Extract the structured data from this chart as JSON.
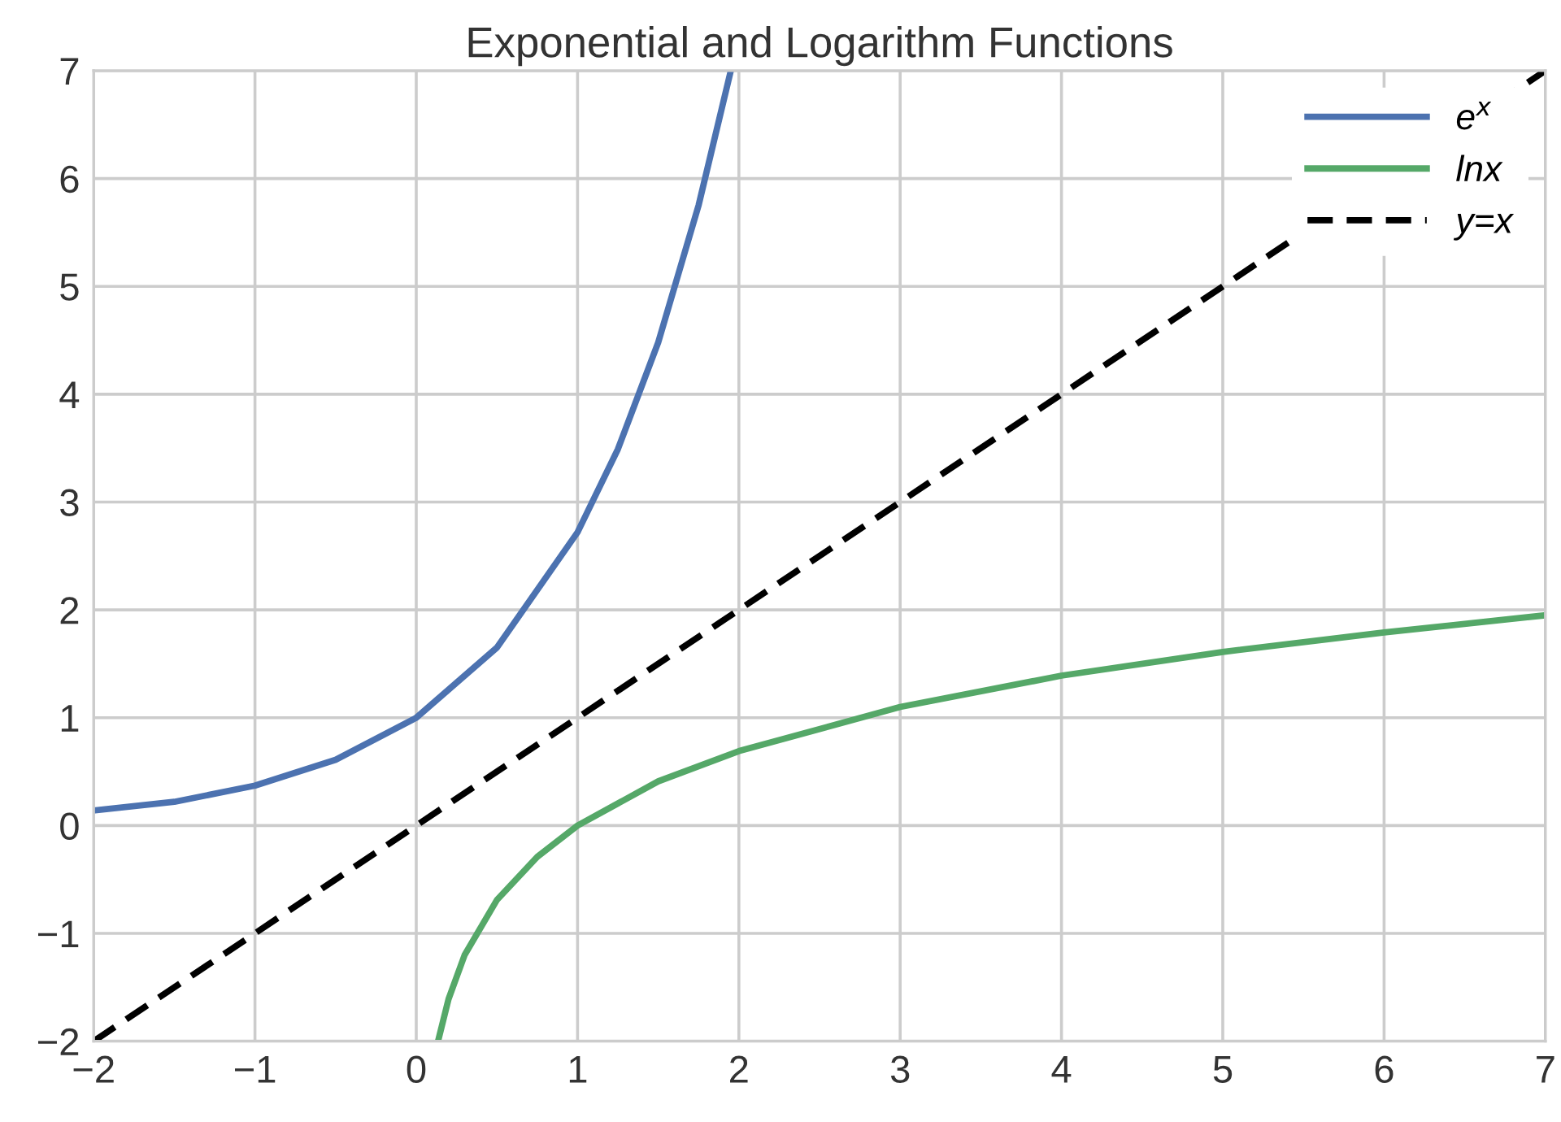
{
  "chart_data": {
    "type": "line",
    "title": "Exponential and Logarithm Functions",
    "series": [
      {
        "name": "e$^{x}$",
        "color": "#4c72b0",
        "line_style": "solid",
        "x": [
          -2,
          -1.5,
          -1,
          -0.5,
          0,
          0.5,
          1,
          1.25,
          1.5,
          1.75,
          1.95
        ],
        "values": [
          0.14,
          0.22,
          0.37,
          0.61,
          1,
          1.65,
          2.72,
          3.49,
          4.48,
          5.75,
          7.0
        ]
      },
      {
        "name": "lnx",
        "color": "#55a868",
        "line_style": "solid",
        "x": [
          0.14,
          0.2,
          0.3,
          0.5,
          0.75,
          1,
          1.5,
          2,
          3,
          4,
          5,
          6,
          7
        ],
        "values": [
          -1.97,
          -1.61,
          -1.2,
          -0.69,
          -0.29,
          0,
          0.41,
          0.69,
          1.1,
          1.39,
          1.61,
          1.79,
          1.95
        ]
      },
      {
        "name": "y=x",
        "color": "#000000",
        "line_style": "dashed",
        "x": [
          -2,
          7
        ],
        "values": [
          -2,
          7
        ]
      }
    ],
    "xlim": [
      -2,
      7
    ],
    "ylim": [
      -2,
      7
    ],
    "xticks": [
      {
        "value": -2,
        "label": "−2"
      },
      {
        "value": -1,
        "label": "−1"
      },
      0,
      1,
      2,
      3,
      4,
      5,
      6,
      7
    ],
    "yticks": [
      {
        "value": -2,
        "label": "−2"
      },
      {
        "value": -1,
        "label": "−1"
      },
      0,
      1,
      2,
      3,
      4,
      5,
      6,
      7
    ],
    "grid": true,
    "legend": "top right",
    "marker": "none"
  }
}
